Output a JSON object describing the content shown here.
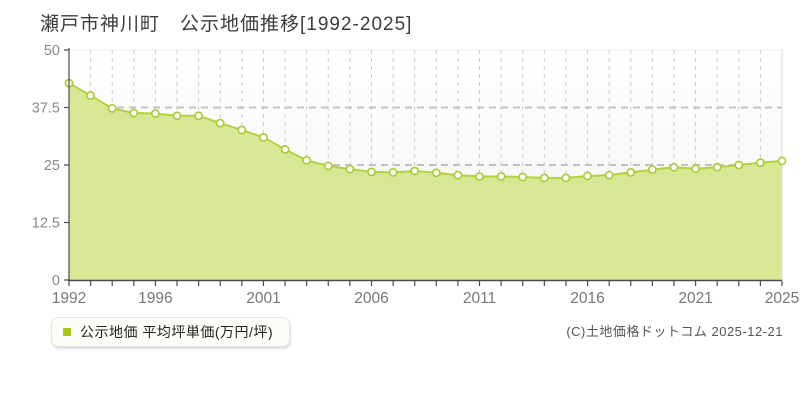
{
  "title": "瀬戸市神川町　公示地価推移[1992-2025]",
  "legend": {
    "label": "公示地価 平均坪単価(万円/坪)",
    "marker_color": "#a6c81c"
  },
  "footer": {
    "copyright": "(C)土地価格ドットコム 2025-12-21"
  },
  "chart_data": {
    "type": "area",
    "title": "瀬戸市神川町 公示地価推移[1992-2025]",
    "series_name": "公示地価 平均坪単価(万円/坪)",
    "xlabel": "",
    "ylabel": "",
    "x": [
      1992,
      1993,
      1994,
      1995,
      1996,
      1997,
      1998,
      1999,
      2000,
      2001,
      2002,
      2003,
      2004,
      2005,
      2006,
      2007,
      2008,
      2009,
      2010,
      2011,
      2012,
      2013,
      2014,
      2015,
      2016,
      2017,
      2018,
      2019,
      2020,
      2021,
      2022,
      2023,
      2024,
      2025
    ],
    "values": [
      42.8,
      40.1,
      37.3,
      36.3,
      36.2,
      35.7,
      35.7,
      34.1,
      32.6,
      31.0,
      28.4,
      26.0,
      24.8,
      24.1,
      23.5,
      23.4,
      23.7,
      23.3,
      22.8,
      22.5,
      22.5,
      22.4,
      22.2,
      22.2,
      22.6,
      22.8,
      23.4,
      24.0,
      24.5,
      24.2,
      24.5,
      25.0,
      25.5,
      25.9
    ],
    "ylim": [
      0,
      50
    ],
    "yticks": [
      0,
      12.5,
      25,
      37.5,
      50
    ],
    "ytick_labels": [
      "0",
      "12.5",
      "25",
      "37.5",
      "50"
    ],
    "xticks": [
      1992,
      1996,
      2001,
      2006,
      2011,
      2016,
      2021,
      2025
    ],
    "grid": "dashed",
    "legend_position": "bottom-left",
    "colors": {
      "area_fill": "#d8e794",
      "line": "#b3d140",
      "marker_fill": "#fdfdf2",
      "marker_stroke": "#a9c93c",
      "grid_vertical": "#cbcbcb",
      "grid_horizontal": "#c2c2c2",
      "axis": "#4a4a4a",
      "ytick_text": "#8a8a8a",
      "xtick_text": "#777777",
      "plot_border": "#dcdcdc"
    }
  }
}
